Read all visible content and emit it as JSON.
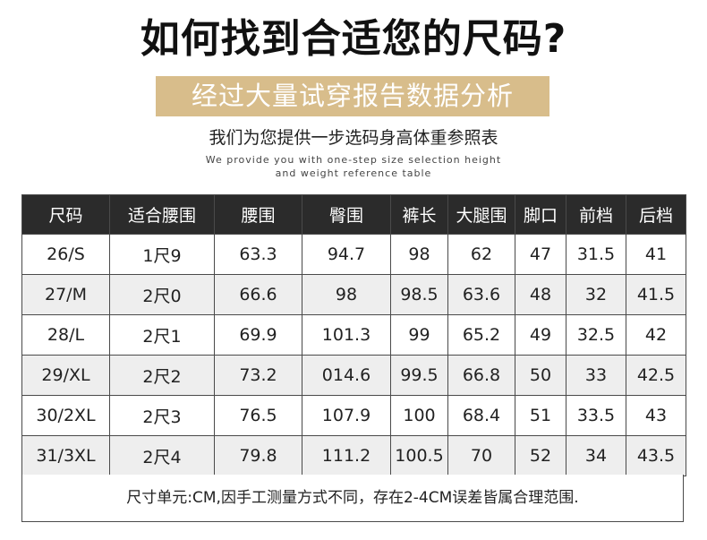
{
  "title": "如何找到合适您的尺码?",
  "banner": "经过大量试穿报告数据分析",
  "subtitle": "我们为您提供一步选码身高体重参照表",
  "subtitle_en_line1": "We provide you with one-step size selection height",
  "subtitle_en_line2": "and weight reference table",
  "table": {
    "headers": [
      "尺码",
      "适合腰围",
      "腰围",
      "臀围",
      "裤长",
      "大腿围",
      "脚口",
      "前档",
      "后档"
    ],
    "rows": [
      [
        "26/S",
        "1尺9",
        "63.3",
        "94.7",
        "98",
        "62",
        "47",
        "31.5",
        "41"
      ],
      [
        "27/M",
        "2尺0",
        "66.6",
        "98",
        "98.5",
        "63.6",
        "48",
        "32",
        "41.5"
      ],
      [
        "28/L",
        "2尺1",
        "69.9",
        "101.3",
        "99",
        "65.2",
        "49",
        "32.5",
        "42"
      ],
      [
        "29/XL",
        "2尺2",
        "73.2",
        "014.6",
        "99.5",
        "66.8",
        "50",
        "33",
        "42.5"
      ],
      [
        "30/2XL",
        "2尺3",
        "76.5",
        "107.9",
        "100",
        "68.4",
        "51",
        "33.5",
        "43"
      ],
      [
        "31/3XL",
        "2尺4",
        "79.8",
        "111.2",
        "100.5",
        "70",
        "52",
        "34",
        "43.5"
      ]
    ]
  },
  "note": "尺寸单元:CM,因手工测量方式不同，存在2-4CM误差皆属合理范围.",
  "colors": {
    "banner_bg": "#d8bd8b",
    "header_bg": "#2b2b2b",
    "row_alt_bg": "#eeeeee"
  }
}
